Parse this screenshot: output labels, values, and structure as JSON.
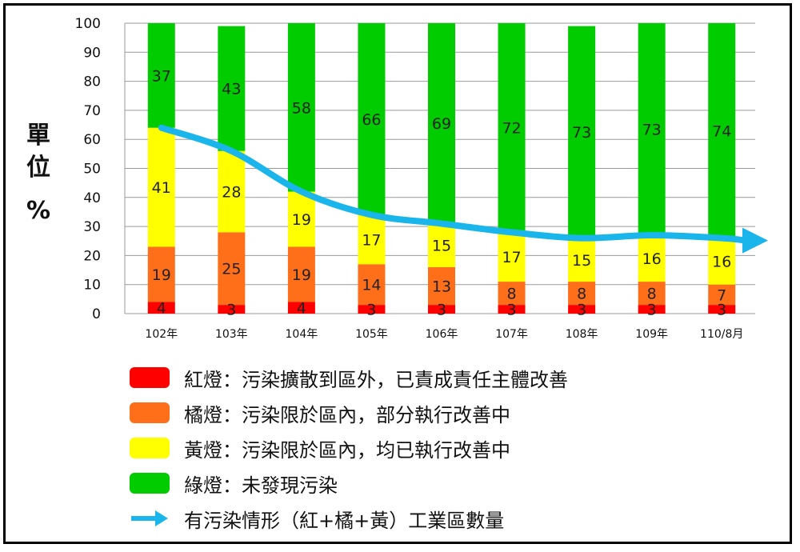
{
  "ylabel_chars": [
    "單",
    "位",
    "%"
  ],
  "chart_data": {
    "type": "bar",
    "stacked": true,
    "categories": [
      "102年",
      "103年",
      "104年",
      "105年",
      "106年",
      "107年",
      "108年",
      "109年",
      "110/8月"
    ],
    "series": [
      {
        "name": "紅燈：污染擴散到區外，已責成責任主體改善",
        "color": "#ff0000",
        "values": [
          4,
          3,
          4,
          3,
          3,
          3,
          3,
          3,
          3
        ]
      },
      {
        "name": "橘燈：污染限於區內，部分執行改善中",
        "color": "#ff6f1a",
        "values": [
          19,
          25,
          19,
          14,
          13,
          8,
          8,
          8,
          7
        ]
      },
      {
        "name": "黃燈：污染限於區內，均已執行改善中",
        "color": "#ffff00",
        "values": [
          41,
          28,
          19,
          17,
          15,
          17,
          15,
          16,
          16
        ]
      },
      {
        "name": "綠燈：未發現污染",
        "color": "#00cc00",
        "values": [
          37,
          43,
          58,
          66,
          69,
          72,
          73,
          73,
          74
        ]
      }
    ],
    "trend": {
      "name": "有污染情形（紅+橘+黃）工業區數量",
      "color": "#1ab5ea"
    },
    "yticks": [
      "0",
      "10",
      "20",
      "30",
      "40",
      "50",
      "60",
      "70",
      "80",
      "90",
      "100"
    ],
    "ylim": [
      0,
      100
    ],
    "grid": true
  }
}
